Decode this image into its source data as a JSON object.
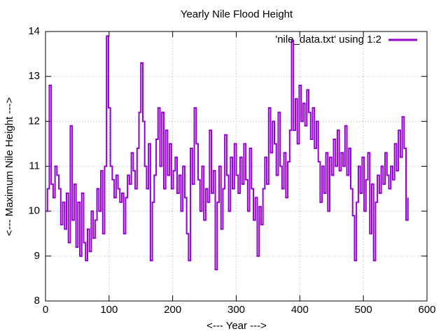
{
  "chart_data": {
    "type": "line",
    "title": "Yearly Nile Flood Height",
    "xlabel": "<--- Year --->",
    "ylabel": "<--- Maximum Nile Height --->",
    "xlim": [
      0,
      600
    ],
    "xticks": [
      0,
      100,
      200,
      300,
      400,
      500,
      600
    ],
    "ylim": [
      8,
      14
    ],
    "yticks": [
      8,
      9,
      10,
      11,
      12,
      13,
      14
    ],
    "grid": true,
    "legend": "top-right",
    "step": true,
    "x": [
      0,
      3,
      6,
      9,
      12,
      15,
      18,
      21,
      24,
      27,
      30,
      33,
      36,
      39,
      42,
      45,
      48,
      51,
      54,
      57,
      60,
      63,
      66,
      69,
      72,
      75,
      78,
      81,
      84,
      87,
      90,
      93,
      96,
      99,
      102,
      105,
      108,
      111,
      114,
      117,
      120,
      123,
      126,
      129,
      132,
      135,
      138,
      141,
      144,
      147,
      150,
      153,
      156,
      159,
      162,
      165,
      168,
      171,
      174,
      177,
      180,
      183,
      186,
      189,
      192,
      195,
      198,
      201,
      204,
      207,
      210,
      213,
      216,
      219,
      222,
      225,
      228,
      231,
      234,
      237,
      240,
      243,
      246,
      249,
      252,
      255,
      258,
      261,
      264,
      267,
      270,
      273,
      276,
      279,
      282,
      285,
      288,
      291,
      294,
      297,
      300,
      303,
      306,
      309,
      312,
      315,
      318,
      321,
      324,
      327,
      330,
      333,
      336,
      339,
      342,
      345,
      348,
      351,
      354,
      357,
      360,
      363,
      366,
      369,
      372,
      375,
      378,
      381,
      384,
      387,
      390,
      393,
      396,
      399,
      402,
      405,
      408,
      411,
      414,
      417,
      420,
      423,
      426,
      429,
      432,
      435,
      438,
      441,
      444,
      447,
      450,
      453,
      456,
      459,
      462,
      465,
      468,
      471,
      474,
      477,
      480,
      483,
      486,
      489,
      492,
      495,
      498,
      501,
      504,
      507,
      510,
      513,
      516,
      519,
      522,
      525,
      528,
      531,
      534,
      537,
      540,
      543,
      546,
      549,
      552,
      555,
      558,
      561,
      564,
      567,
      570
    ],
    "series": [
      {
        "name": "'nile_data.txt' using 1:2",
        "color": "#9400d3",
        "values": [
          10.0,
          10.5,
          12.8,
          10.6,
          10.3,
          11.0,
          10.8,
          10.5,
          9.7,
          10.2,
          9.6,
          10.4,
          9.3,
          11.9,
          9.8,
          10.6,
          9.2,
          10.2,
          9.0,
          10.4,
          9.3,
          8.9,
          9.6,
          9.1,
          10.0,
          9.4,
          9.8,
          10.5,
          10.0,
          10.9,
          9.5,
          11.0,
          13.9,
          12.3,
          11.0,
          10.7,
          10.3,
          10.8,
          10.5,
          10.2,
          10.4,
          9.5,
          10.3,
          10.8,
          10.6,
          11.3,
          10.9,
          10.5,
          11.4,
          12.2,
          13.3,
          12.0,
          11.0,
          10.5,
          11.5,
          8.9,
          10.2,
          10.8,
          11.6,
          12.3,
          11.0,
          12.2,
          10.5,
          11.8,
          10.8,
          11.5,
          10.5,
          10.9,
          11.2,
          10.4,
          10.8,
          10.0,
          11.0,
          10.3,
          9.5,
          8.9,
          11.4,
          10.6,
          12.3,
          11.5,
          10.7,
          10.0,
          11.0,
          9.8,
          10.5,
          10.2,
          11.8,
          10.4,
          10.9,
          8.7,
          10.2,
          11.0,
          9.6,
          10.5,
          11.7,
          10.8,
          10.0,
          11.2,
          10.5,
          11.5,
          10.8,
          10.4,
          11.2,
          10.6,
          11.5,
          10.7,
          10.0,
          11.4,
          10.5,
          9.8,
          10.3,
          9.0,
          10.1,
          9.7,
          10.5,
          11.2,
          10.6,
          12.3,
          11.3,
          12.0,
          11.5,
          10.8,
          12.2,
          11.0,
          10.5,
          11.3,
          10.3,
          11.1,
          11.8,
          13.8,
          11.8,
          12.5,
          11.5,
          12.8,
          12.0,
          12.4,
          11.9,
          12.7,
          12.2,
          11.6,
          12.3,
          11.4,
          12.0,
          11.1,
          10.2,
          11.0,
          10.4,
          11.3,
          10.0,
          11.2,
          10.8,
          11.6,
          11.0,
          11.8,
          10.9,
          11.3,
          11.0,
          11.9,
          10.8,
          11.4,
          10.5,
          9.9,
          8.9,
          10.2,
          11.0,
          10.4,
          11.2,
          10.0,
          10.7,
          11.3,
          9.5,
          10.6,
          8.9,
          10.2,
          10.8,
          10.4,
          11.0,
          10.6,
          11.3,
          10.8,
          10.5,
          11.0,
          10.7,
          11.5,
          10.9,
          11.8,
          11.2,
          12.1,
          11.4,
          9.8,
          10.3
        ]
      }
    ]
  }
}
